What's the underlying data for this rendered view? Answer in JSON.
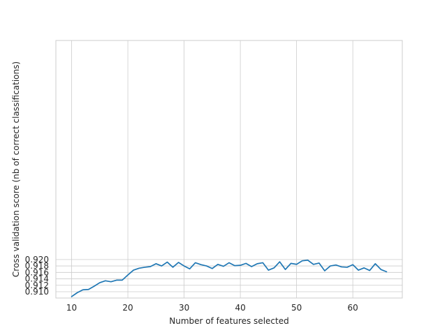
{
  "chart_data": {
    "type": "line",
    "title": "",
    "xlabel": "Number of features selected",
    "ylabel": "Cross validation score (nb of correct classifications)",
    "xlim": [
      7.2,
      68.8
    ],
    "ylim": [
      0.988,
      0.92045
    ],
    "x_ticks": [
      10,
      20,
      30,
      40,
      50,
      60
    ],
    "y_ticks": [
      0.91,
      0.912,
      0.914,
      0.916,
      0.918,
      0.92
    ],
    "x_tick_labels": [
      "10",
      "20",
      "30",
      "40",
      "50",
      "60"
    ],
    "y_tick_labels": [
      "0.910",
      "0.912",
      "0.914",
      "0.916",
      "0.918",
      "0.920"
    ],
    "grid": true,
    "legend": "none",
    "color": "#1f77b4",
    "series": [
      {
        "x": [
          10,
          11,
          12,
          13,
          14,
          15,
          16,
          17,
          18,
          19,
          20,
          21,
          22,
          23,
          24,
          25,
          26,
          27,
          28,
          29,
          30,
          31,
          32,
          33,
          34,
          35,
          36,
          37,
          38,
          39,
          40,
          41,
          42,
          43,
          44,
          45,
          46,
          47,
          48,
          49,
          50,
          51,
          52,
          53,
          54,
          55,
          56,
          57,
          58,
          59,
          60,
          61,
          62,
          63,
          64,
          65,
          66
        ],
        "y": [
          0.9085,
          0.9097,
          0.9106,
          0.9107,
          0.9117,
          0.9128,
          0.9134,
          0.9131,
          0.9136,
          0.9136,
          0.9152,
          0.9167,
          0.9173,
          0.9176,
          0.9178,
          0.9187,
          0.918,
          0.9192,
          0.9176,
          0.9191,
          0.918,
          0.9171,
          0.919,
          0.9184,
          0.918,
          0.9172,
          0.9185,
          0.9179,
          0.919,
          0.9181,
          0.9182,
          0.9188,
          0.9178,
          0.9187,
          0.919,
          0.9167,
          0.9174,
          0.9193,
          0.9169,
          0.9188,
          0.9185,
          0.9196,
          0.9198,
          0.9185,
          0.9189,
          0.9165,
          0.918,
          0.9183,
          0.9177,
          0.9176,
          0.9184,
          0.9167,
          0.9174,
          0.9166,
          0.9187,
          0.9169,
          0.9162
        ]
      }
    ]
  }
}
